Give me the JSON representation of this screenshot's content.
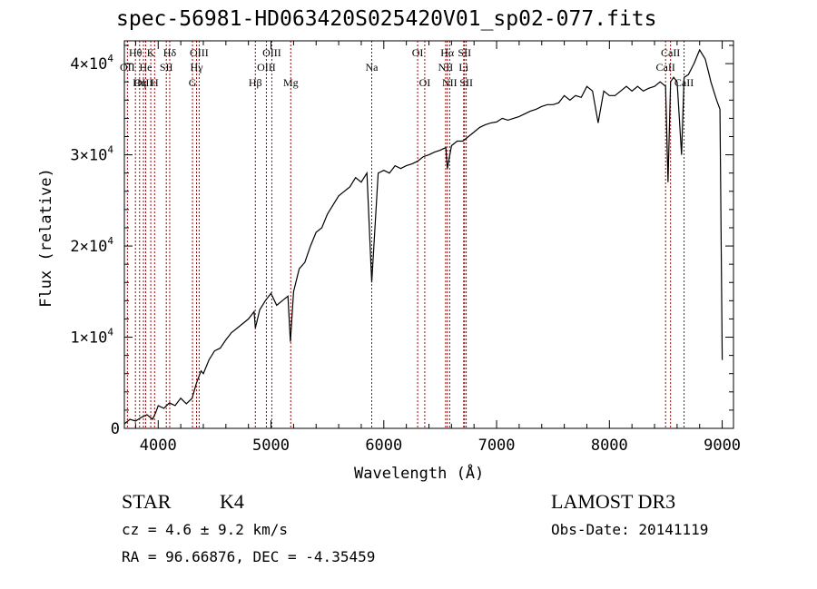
{
  "chart_data": {
    "type": "line",
    "title": "spec-56981-HD063420S025420V01_sp02-077.fits",
    "xlabel": "Wavelength (Å)",
    "ylabel": "Flux (relative)",
    "xlim": [
      3700,
      9100
    ],
    "ylim": [
      0,
      42500
    ],
    "x_ticks": [
      4000,
      5000,
      6000,
      7000,
      8000,
      9000
    ],
    "x_tick_labels": [
      "4000",
      "5000",
      "6000",
      "7000",
      "8000",
      "9000"
    ],
    "y_ticks": [
      0,
      10000,
      20000,
      30000,
      40000
    ],
    "y_tick_labels": [
      {
        "mant": "0",
        "exp": ""
      },
      {
        "mant": "1×10",
        "exp": "4"
      },
      {
        "mant": "2×10",
        "exp": "4"
      },
      {
        "mant": "3×10",
        "exp": "4"
      },
      {
        "mant": "4×10",
        "exp": "4"
      }
    ],
    "grid": false,
    "series": [
      {
        "name": "spectrum",
        "x": [
          3700,
          3750,
          3800,
          3850,
          3900,
          3950,
          3980,
          4000,
          4050,
          4100,
          4150,
          4200,
          4250,
          4300,
          4340,
          4380,
          4400,
          4450,
          4500,
          4550,
          4600,
          4650,
          4700,
          4750,
          4800,
          4850,
          4861,
          4900,
          4950,
          5000,
          5050,
          5100,
          5150,
          5172,
          5200,
          5250,
          5300,
          5350,
          5400,
          5450,
          5500,
          5550,
          5600,
          5650,
          5700,
          5750,
          5800,
          5850,
          5893,
          5950,
          6000,
          6050,
          6100,
          6150,
          6200,
          6250,
          6300,
          6350,
          6400,
          6450,
          6500,
          6550,
          6563,
          6600,
          6650,
          6700,
          6750,
          6800,
          6850,
          6900,
          6950,
          7000,
          7050,
          7100,
          7150,
          7200,
          7250,
          7300,
          7350,
          7400,
          7450,
          7500,
          7550,
          7600,
          7650,
          7700,
          7750,
          7800,
          7850,
          7900,
          7950,
          8000,
          8050,
          8100,
          8150,
          8200,
          8250,
          8300,
          8350,
          8400,
          8450,
          8498,
          8520,
          8542,
          8570,
          8600,
          8640,
          8662,
          8700,
          8750,
          8800,
          8850,
          8880,
          8900,
          8950,
          8980,
          9000
        ],
        "y": [
          500,
          1000,
          800,
          1200,
          1500,
          1000,
          1800,
          2500,
          2200,
          2800,
          2500,
          3300,
          2700,
          3300,
          5000,
          6300,
          6000,
          7500,
          8500,
          8800,
          9700,
          10500,
          11000,
          11500,
          12000,
          12800,
          11000,
          13000,
          14000,
          14800,
          13500,
          14000,
          14500,
          9500,
          15000,
          17500,
          18200,
          20000,
          21500,
          22000,
          23500,
          24500,
          25500,
          26000,
          26500,
          27500,
          27000,
          28000,
          16000,
          28000,
          28300,
          28000,
          28800,
          28500,
          28800,
          29000,
          29300,
          29800,
          30000,
          30300,
          30500,
          30800,
          28500,
          31000,
          31500,
          31500,
          32000,
          32500,
          33000,
          33300,
          33500,
          33600,
          34000,
          33800,
          34000,
          34200,
          34500,
          34800,
          35000,
          35300,
          35500,
          35500,
          35700,
          36500,
          36000,
          36500,
          36300,
          37500,
          37000,
          33500,
          37000,
          36500,
          36500,
          37000,
          37500,
          37000,
          37500,
          37000,
          37300,
          37500,
          38000,
          37500,
          27000,
          38000,
          38500,
          38000,
          30000,
          38500,
          38800,
          40000,
          41500,
          40500,
          39000,
          38000,
          36000,
          35000,
          7500
        ]
      }
    ],
    "lines": [
      {
        "name": "Hθ",
        "wave": 3798,
        "row": 1,
        "color": "#aa0000"
      },
      {
        "name": "OII",
        "wave": 3727,
        "row": 2,
        "color": "#aa0000"
      },
      {
        "name": "OIII",
        "wave": 3869,
        "row": 3,
        "color": "#aa0000"
      },
      {
        "name": "He",
        "wave": 3889,
        "row": 2,
        "color": "#aa0000"
      },
      {
        "name": "Hη",
        "wave": 3835,
        "row": 3,
        "color": "#aa0000"
      },
      {
        "name": "K",
        "wave": 3934,
        "row": 1,
        "color": "#aa0000"
      },
      {
        "name": "SII",
        "wave": 4072,
        "row": 2,
        "color": "#aa0000"
      },
      {
        "name": "H",
        "wave": 3968,
        "row": 3,
        "color": "#aa0000"
      },
      {
        "name": "Hδ",
        "wave": 4102,
        "row": 1,
        "color": "#aa0000"
      },
      {
        "name": "OIII",
        "wave": 4363,
        "row": 1,
        "color": "#aa0000"
      },
      {
        "name": "Hγ",
        "wave": 4340,
        "row": 2,
        "color": "#aa0000"
      },
      {
        "name": "G",
        "wave": 4304,
        "row": 3,
        "color": "#aa0000"
      },
      {
        "name": "Hβ",
        "wave": 4861,
        "row": 3,
        "color": "#aa0000"
      },
      {
        "name": "OIII",
        "wave": 5007,
        "row": 1,
        "color": "#aa0000"
      },
      {
        "name": "OIII",
        "wave": 4959,
        "row": 2,
        "color": "#aa0000"
      },
      {
        "name": "Mg",
        "wave": 5175,
        "row": 3,
        "color": "#aa0000"
      },
      {
        "name": "Na",
        "wave": 5893,
        "row": 2,
        "color": "#aa0000"
      },
      {
        "name": "OI",
        "wave": 6300,
        "row": 1,
        "color": "#aa0000"
      },
      {
        "name": "OI",
        "wave": 6363,
        "row": 3,
        "color": "#aa0000"
      },
      {
        "name": "Hα",
        "wave": 6563,
        "row": 1,
        "color": "#aa0000"
      },
      {
        "name": "SII",
        "wave": 6716,
        "row": 1,
        "color": "#aa0000"
      },
      {
        "name": "NII",
        "wave": 6548,
        "row": 2,
        "color": "#aa0000"
      },
      {
        "name": "Li",
        "wave": 6708,
        "row": 2,
        "color": "#aa0000"
      },
      {
        "name": "NII",
        "wave": 6584,
        "row": 3,
        "color": "#aa0000"
      },
      {
        "name": "SII",
        "wave": 6731,
        "row": 3,
        "color": "#aa0000"
      },
      {
        "name": "CaII",
        "wave": 8542,
        "row": 1,
        "color": "#aa0000"
      },
      {
        "name": "CaII",
        "wave": 8498,
        "row": 2,
        "color": "#aa0000"
      },
      {
        "name": "CaII",
        "wave": 8662,
        "row": 3,
        "color": "#aa0000"
      }
    ]
  },
  "info": {
    "object_class": "STAR",
    "subclass": "K4",
    "survey": "LAMOST DR3",
    "redshift": "cz =  4.6 ± 9.2 km/s",
    "obs_date": "Obs-Date: 20141119",
    "coords": "RA =  96.66876, DEC =  -4.35459"
  }
}
